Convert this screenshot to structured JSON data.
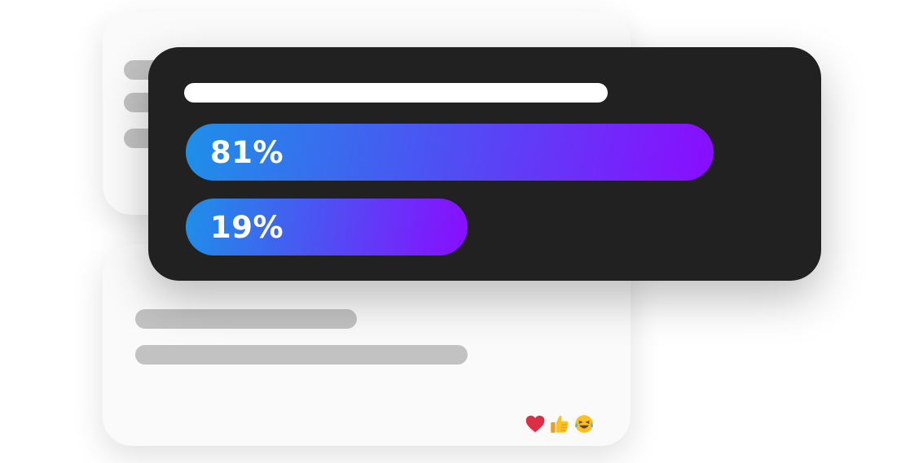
{
  "colors": {
    "poll_background": "#212121",
    "gradient_start": "#1e90e8",
    "gradient_mid": "#4a55f2",
    "gradient_end": "#8a0cff",
    "skeleton": "#c2c2c2",
    "card_background": "#fafafa"
  },
  "poll": {
    "options": [
      {
        "percent_label": "81%",
        "fraction": 0.81
      },
      {
        "percent_label": "19%",
        "fraction": 0.19
      }
    ]
  },
  "reactions": [
    {
      "icon": "heart-icon",
      "glyph": "❤"
    },
    {
      "icon": "thumbs-up-icon",
      "glyph": "👍"
    },
    {
      "icon": "laughing-tears-icon",
      "glyph": "😂"
    }
  ]
}
